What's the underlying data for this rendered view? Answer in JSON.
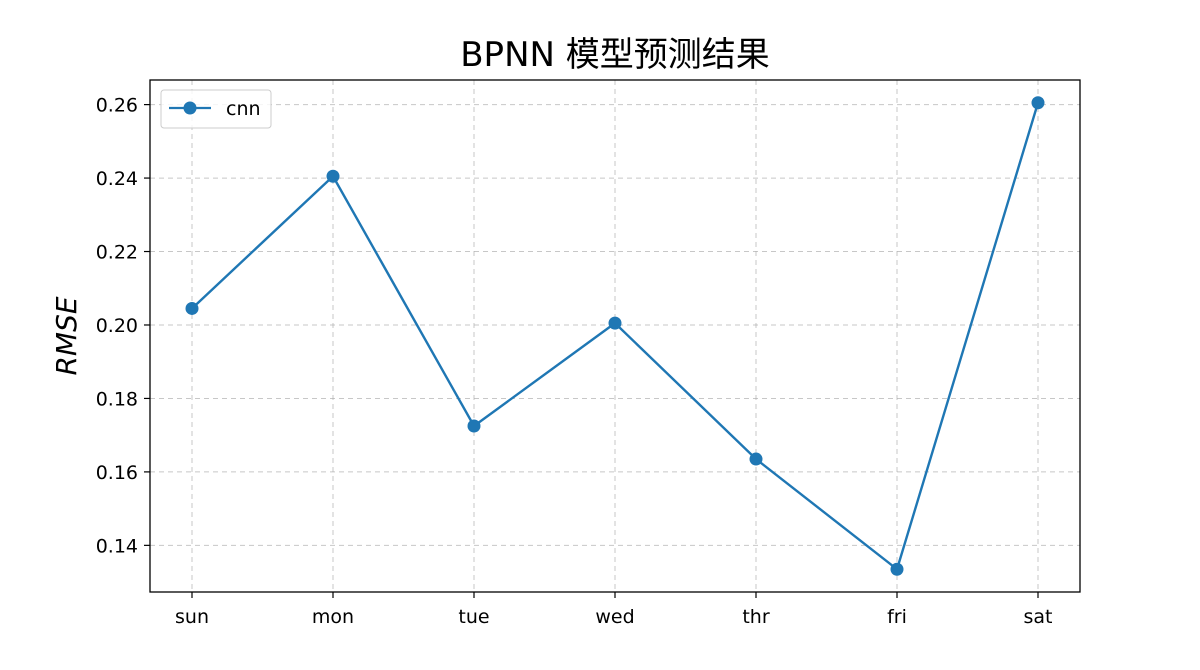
{
  "chart_data": {
    "type": "line",
    "title": "BPNN 模型预测结果",
    "xlabel": "",
    "ylabel": "RMSE",
    "categories": [
      "sun",
      "mon",
      "tue",
      "wed",
      "thr",
      "fri",
      "sat"
    ],
    "series": [
      {
        "name": "cnn",
        "color": "#1f77b4",
        "marker": "circle",
        "values": [
          0.2045,
          0.2405,
          0.1725,
          0.2005,
          0.1635,
          0.1335,
          0.2605
        ]
      }
    ],
    "ylim": [
      0.1273,
      0.2667
    ],
    "yticks": [
      0.14,
      0.16,
      0.18,
      0.2,
      0.22,
      0.24,
      0.26
    ],
    "ytick_labels": [
      "0.14",
      "0.16",
      "0.18",
      "0.20",
      "0.22",
      "0.24",
      "0.26"
    ],
    "grid": true,
    "grid_style": "dashed",
    "legend_position": "top-left"
  }
}
